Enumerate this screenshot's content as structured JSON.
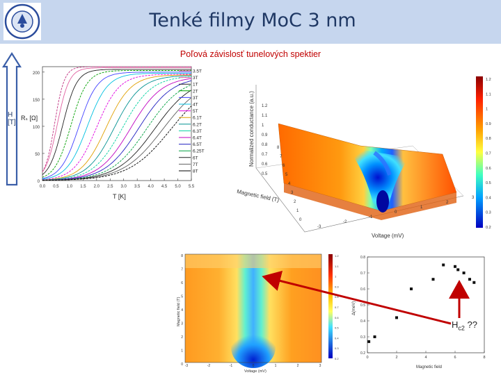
{
  "slide": {
    "title": "Tenké filmy MoC 3 nm",
    "subtitle": "Poľová závislosť tunelových spektier"
  },
  "colors": {
    "header_bg": "#c6d6ee",
    "title": "#1f3864",
    "subtitle": "#c00000",
    "arrow": "#c00000"
  },
  "field_arrow": {
    "label_line1": "H",
    "label_line2": "[T]"
  },
  "rt_plot": {
    "ylabel": "Rₛ [Ω]",
    "xlabel": "T [K]",
    "yticks": [
      "200",
      "150",
      "100",
      "50",
      "0"
    ],
    "xticks": [
      "0.0",
      "0.5",
      "1.0",
      "1.5",
      "2.0",
      "2.5",
      "3.0",
      "3.5",
      "4.0",
      "4.5",
      "5.0",
      "5.5"
    ],
    "legend": [
      "3.5T",
      "3T",
      "1T",
      "2T",
      "3T",
      "4T",
      "5T",
      "6.1T",
      "6.2T",
      "6.3T",
      "6.4T",
      "6.5T",
      "6.25T",
      "6T",
      "7T",
      "8T"
    ]
  },
  "surface_plot": {
    "zlabel": "Normalized conductance (a.u.)",
    "ylabel": "Magnetic field (T)",
    "xlabel": "Voltage (mV)",
    "zticks": [
      "1.2",
      "1.1",
      "1",
      "0.9",
      "0.8",
      "0.7",
      "0.6",
      "0.5"
    ],
    "fticks": [
      "8",
      "7",
      "6",
      "5",
      "4",
      "3",
      "2",
      "1",
      "0"
    ],
    "vticks": [
      "-3",
      "-2",
      "-1",
      "0",
      "1",
      "2",
      "3"
    ],
    "colorbar": [
      "1.2",
      "1.1",
      "1",
      "0.9",
      "0.8",
      "0.7",
      "0.6",
      "0.5",
      "0.4",
      "0.3",
      "0.2"
    ]
  },
  "map_plot": {
    "ylabel": "Magnetic field (T)",
    "xlabel": "Voltage (mV)",
    "yticks": [
      "8",
      "7",
      "6",
      "5",
      "4",
      "3",
      "2",
      "1",
      "0"
    ],
    "xticks": [
      "-3",
      "-2",
      "-1",
      "0",
      "1",
      "2",
      "3"
    ],
    "colorbar": [
      "1.2",
      "1.1",
      "1",
      "0.9",
      "0.8",
      "0.7",
      "0.6",
      "0.5",
      "0.4",
      "0.3",
      "0.2"
    ]
  },
  "gap_plot": {
    "ylabel": "Δ(meV)",
    "xlabel": "Magnetic field",
    "yticks": [
      "0.8",
      "0.7",
      "0.6",
      "0.5",
      "0.4",
      "0.3",
      "0.2"
    ],
    "xticks": [
      "0",
      "2",
      "4",
      "6",
      "8"
    ],
    "annotation": "H",
    "annotation_sub": "c2",
    "annotation_tail": "??"
  },
  "chart_data": [
    {
      "type": "line",
      "xlabel": "T [K]",
      "ylabel": "Rₛ [Ω]",
      "xlim": [
        0,
        5.5
      ],
      "ylim": [
        0,
        210
      ],
      "series": [
        {
          "name": "3.5T",
          "Tc": 0.2,
          "Rn": 210
        },
        {
          "name": "3T",
          "Tc": 0.3,
          "Rn": 208
        },
        {
          "name": "1T",
          "Tc": 0.5,
          "Rn": 205
        },
        {
          "name": "2T",
          "Tc": 0.8,
          "Rn": 203
        },
        {
          "name": "3T",
          "Tc": 1.1,
          "Rn": 200
        },
        {
          "name": "4T",
          "Tc": 1.4,
          "Rn": 198
        },
        {
          "name": "5T",
          "Tc": 1.75,
          "Rn": 196
        },
        {
          "name": "6.1T",
          "Tc": 2.1,
          "Rn": 195
        },
        {
          "name": "6.2T",
          "Tc": 2.4,
          "Rn": 194
        },
        {
          "name": "6.3T",
          "Tc": 2.7,
          "Rn": 193
        },
        {
          "name": "6.4T",
          "Tc": 3.0,
          "Rn": 192
        },
        {
          "name": "6.5T",
          "Tc": 3.3,
          "Rn": 192
        },
        {
          "name": "6.25T",
          "Tc": 3.6,
          "Rn": 191
        },
        {
          "name": "6T",
          "Tc": 3.9,
          "Rn": 191
        },
        {
          "name": "7T",
          "Tc": 4.2,
          "Rn": 190
        },
        {
          "name": "8T",
          "Tc": 4.5,
          "Rn": 190
        }
      ]
    },
    {
      "type": "scatter",
      "xlabel": "Magnetic field",
      "ylabel": "Δ(meV)",
      "xlim": [
        0,
        8
      ],
      "ylim": [
        0.2,
        0.8
      ],
      "x": [
        0.1,
        0.5,
        2.0,
        3.0,
        4.5,
        5.2,
        6.0,
        6.2,
        6.6,
        7.0,
        7.3
      ],
      "y": [
        0.27,
        0.3,
        0.42,
        0.6,
        0.66,
        0.75,
        0.74,
        0.72,
        0.7,
        0.66,
        0.64
      ]
    }
  ]
}
